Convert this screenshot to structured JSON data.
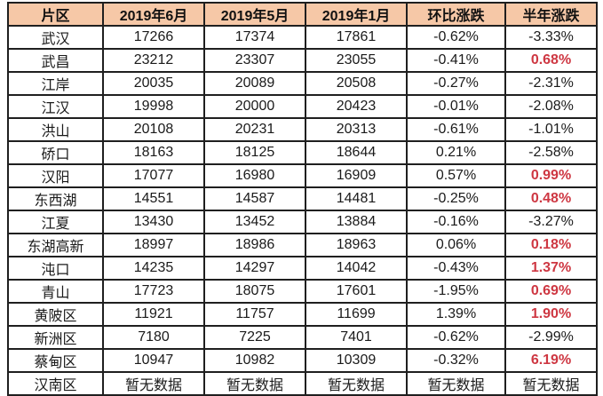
{
  "colors": {
    "header_bg": "#F6C8A7",
    "border": "#1F1F1F",
    "text": "#1A1A1A",
    "highlight_red": "#CE3742",
    "row_bg": "#FFFFFF",
    "page_bg": "#FFFFFF"
  },
  "chart_data": {
    "type": "table",
    "title": "",
    "columns": [
      "片区",
      "2019年6月",
      "2019年5月",
      "2019年1月",
      "环比涨跌",
      "半年涨跌"
    ],
    "no_data_label": "暂无数据",
    "rows": [
      {
        "cells": [
          "武汉",
          "17266",
          "17374",
          "17861",
          "-0.62%",
          "-3.33%"
        ],
        "half_year_highlight": false
      },
      {
        "cells": [
          "武昌",
          "23212",
          "23307",
          "23055",
          "-0.41%",
          "0.68%"
        ],
        "half_year_highlight": true
      },
      {
        "cells": [
          "江岸",
          "20035",
          "20089",
          "20508",
          "-0.27%",
          "-2.31%"
        ],
        "half_year_highlight": false
      },
      {
        "cells": [
          "江汉",
          "19998",
          "20000",
          "20423",
          "-0.01%",
          "-2.08%"
        ],
        "half_year_highlight": false
      },
      {
        "cells": [
          "洪山",
          "20108",
          "20231",
          "20313",
          "-0.61%",
          "-1.01%"
        ],
        "half_year_highlight": false
      },
      {
        "cells": [
          "硚口",
          "18163",
          "18125",
          "18644",
          "0.21%",
          "-2.58%"
        ],
        "half_year_highlight": false
      },
      {
        "cells": [
          "汉阳",
          "17077",
          "16980",
          "16909",
          "0.57%",
          "0.99%"
        ],
        "half_year_highlight": true
      },
      {
        "cells": [
          "东西湖",
          "14551",
          "14587",
          "14481",
          "-0.25%",
          "0.48%"
        ],
        "half_year_highlight": true
      },
      {
        "cells": [
          "江夏",
          "13430",
          "13452",
          "13884",
          "-0.16%",
          "-3.27%"
        ],
        "half_year_highlight": false
      },
      {
        "cells": [
          "东湖高新",
          "18997",
          "18986",
          "18963",
          "0.06%",
          "0.18%"
        ],
        "half_year_highlight": true
      },
      {
        "cells": [
          "沌口",
          "14235",
          "14297",
          "14042",
          "-0.43%",
          "1.37%"
        ],
        "half_year_highlight": true
      },
      {
        "cells": [
          "青山",
          "17723",
          "18075",
          "17601",
          "-1.95%",
          "0.69%"
        ],
        "half_year_highlight": true
      },
      {
        "cells": [
          "黄陂区",
          "11921",
          "11757",
          "11699",
          "1.39%",
          "1.90%"
        ],
        "half_year_highlight": true
      },
      {
        "cells": [
          "新洲区",
          "7180",
          "7225",
          "7401",
          "-0.62%",
          "-2.99%"
        ],
        "half_year_highlight": false
      },
      {
        "cells": [
          "蔡甸区",
          "10947",
          "10982",
          "10309",
          "-0.32%",
          "6.19%"
        ],
        "half_year_highlight": true
      },
      {
        "cells": [
          "汉南区",
          "暂无数据",
          "暂无数据",
          "暂无数据",
          "暂无数据",
          "暂无数据"
        ],
        "half_year_highlight": false
      }
    ]
  }
}
